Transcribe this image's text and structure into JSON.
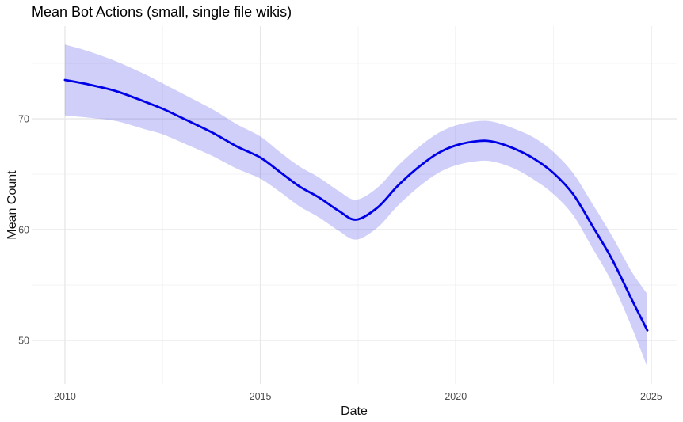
{
  "chart_data": {
    "type": "line",
    "title": "Mean Bot Actions (small, single file wikis)",
    "xlabel": "Date",
    "ylabel": "Mean Count",
    "xlim": [
      2009.17,
      2025.65
    ],
    "ylim": [
      46.07,
      78.36
    ],
    "x_major_ticks": [
      2010,
      2015,
      2020,
      2025
    ],
    "x_minor_ticks": [
      2012.5,
      2017.5,
      2022.5
    ],
    "y_major_ticks": [
      50,
      60,
      70
    ],
    "y_minor_ticks": [
      55,
      65,
      75
    ],
    "grid": true,
    "legend": "none",
    "line_color": "#0000E6",
    "ribbon_color": "#0000E6",
    "ribbon_alpha": 0.19,
    "line_width": 2.8,
    "x": [
      2010.0,
      2010.6,
      2011.3,
      2012.0,
      2012.5,
      2013.1,
      2013.8,
      2014.4,
      2015.0,
      2015.5,
      2016.0,
      2016.5,
      2017.0,
      2017.45,
      2018.0,
      2018.5,
      2019.0,
      2019.5,
      2020.0,
      2020.6,
      2021.0,
      2021.5,
      2022.0,
      2022.5,
      2023.0,
      2023.5,
      2024.0,
      2024.5,
      2024.9
    ],
    "y": [
      73.5,
      73.1,
      72.5,
      71.6,
      70.9,
      69.9,
      68.7,
      67.5,
      66.5,
      65.2,
      63.9,
      62.9,
      61.7,
      60.9,
      62.0,
      63.9,
      65.5,
      66.8,
      67.6,
      68.0,
      67.9,
      67.3,
      66.4,
      65.1,
      63.2,
      60.3,
      57.3,
      53.7,
      50.9
    ],
    "ci_upper": [
      76.7,
      76.1,
      75.2,
      74.1,
      73.2,
      72.1,
      70.8,
      69.5,
      68.4,
      67.0,
      65.7,
      64.7,
      63.5,
      62.7,
      63.8,
      65.7,
      67.3,
      68.6,
      69.4,
      69.8,
      69.7,
      69.1,
      68.3,
      67.0,
      65.1,
      62.3,
      59.4,
      56.2,
      54.2
    ],
    "ci_lower": [
      70.3,
      70.1,
      69.8,
      69.1,
      68.6,
      67.7,
      66.6,
      65.5,
      64.6,
      63.4,
      62.1,
      61.1,
      59.9,
      59.1,
      60.2,
      62.1,
      63.7,
      65.0,
      65.8,
      66.2,
      66.1,
      65.5,
      64.5,
      63.2,
      61.3,
      58.3,
      55.2,
      51.2,
      47.6
    ]
  }
}
